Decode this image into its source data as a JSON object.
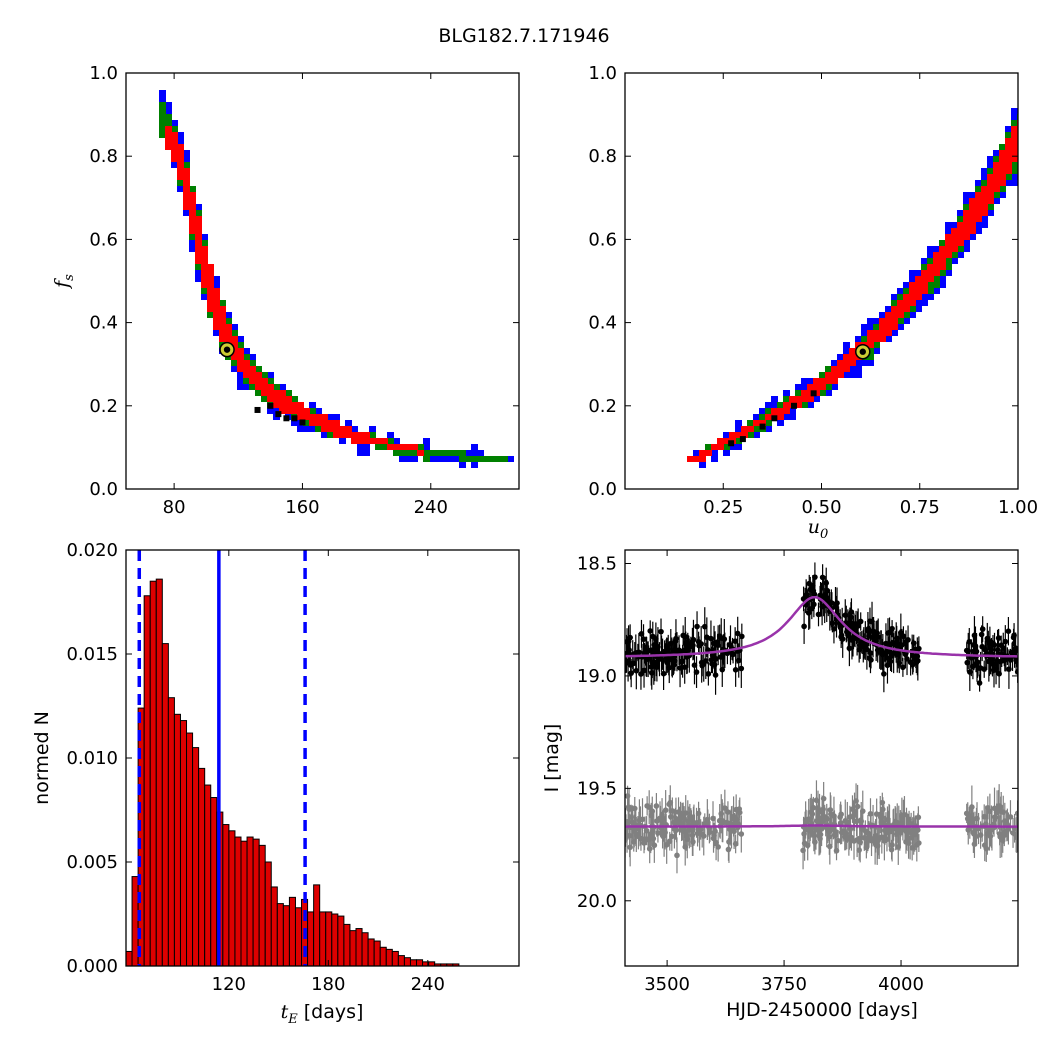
{
  "figure": {
    "title": "BLG182.7.171946"
  },
  "colors": {
    "sigma3": "#0000ff",
    "sigma2": "#008000",
    "sigma1": "#ff0000",
    "core": "#000000",
    "best_fit_marker": "#cccc33",
    "hist_bar": "#dd0000",
    "hist_line": "#0000ff",
    "data_primary": "#000000",
    "data_secondary": "#808080",
    "model": "#9933aa"
  },
  "chart_data": [
    {
      "type": "heatmap",
      "id": "tE_vs_fs",
      "xlabel": "",
      "ylabel": "f_s",
      "ylabel_parts": {
        "sym": "f",
        "sub": "s"
      },
      "xlim": [
        50,
        295
      ],
      "ylim": [
        0.0,
        1.0
      ],
      "xticks": [
        80,
        160,
        240
      ],
      "yticks": [
        0.0,
        0.2,
        0.4,
        0.6,
        0.8,
        1.0
      ],
      "xtick_labels": [
        "80",
        "160",
        "240"
      ],
      "ytick_labels": [
        "0.0",
        "0.2",
        "0.4",
        "0.6",
        "0.8",
        "1.0"
      ],
      "confidence_bands": [
        {
          "level": "3 sigma",
          "ridge": [
            [
              72,
              0.93
            ],
            [
              80,
              0.84
            ],
            [
              88,
              0.72
            ],
            [
              96,
              0.58
            ],
            [
              104,
              0.46
            ],
            [
              112,
              0.37
            ],
            [
              124,
              0.29
            ],
            [
              140,
              0.23
            ],
            [
              160,
              0.18
            ],
            [
              190,
              0.13
            ],
            [
              220,
              0.1
            ],
            [
              250,
              0.08
            ],
            [
              288,
              0.07
            ]
          ],
          "halfwidth_y": [
            0.035,
            0.04,
            0.045,
            0.05,
            0.05,
            0.045,
            0.04,
            0.035,
            0.03,
            0.02,
            0.015,
            0.012,
            0.01
          ]
        },
        {
          "level": "2 sigma",
          "ridge": [
            [
              72,
              0.9
            ],
            [
              80,
              0.83
            ],
            [
              88,
              0.72
            ],
            [
              96,
              0.58
            ],
            [
              104,
              0.46
            ],
            [
              112,
              0.37
            ],
            [
              124,
              0.29
            ],
            [
              140,
              0.23
            ],
            [
              160,
              0.18
            ],
            [
              190,
              0.13
            ],
            [
              220,
              0.1
            ],
            [
              250,
              0.08
            ],
            [
              284,
              0.07
            ]
          ],
          "halfwidth_y": [
            0.025,
            0.03,
            0.035,
            0.04,
            0.04,
            0.035,
            0.03,
            0.027,
            0.022,
            0.016,
            0.012,
            0.01,
            0.008
          ]
        },
        {
          "level": "1 sigma",
          "ridge": [
            [
              75,
              0.85
            ],
            [
              80,
              0.83
            ],
            [
              88,
              0.72
            ],
            [
              96,
              0.58
            ],
            [
              104,
              0.46
            ],
            [
              112,
              0.37
            ],
            [
              124,
              0.29
            ],
            [
              140,
              0.23
            ],
            [
              160,
              0.18
            ],
            [
              190,
              0.13
            ],
            [
              220,
              0.1
            ],
            [
              235,
              0.09
            ]
          ],
          "halfwidth_y": [
            0.02,
            0.022,
            0.025,
            0.028,
            0.028,
            0.025,
            0.022,
            0.02,
            0.016,
            0.012,
            0.009,
            0.008
          ]
        }
      ],
      "core_points": [
        [
          132,
          0.19
        ],
        [
          140,
          0.2
        ],
        [
          145,
          0.18
        ],
        [
          150,
          0.17
        ],
        [
          155,
          0.17
        ],
        [
          160,
          0.16
        ]
      ],
      "best_fit": {
        "x": 113,
        "y": 0.335
      }
    },
    {
      "type": "heatmap",
      "id": "u0_vs_fs",
      "xlabel": "u_0",
      "ylabel": "",
      "xlabel_parts": {
        "sym": "u",
        "sub": "0"
      },
      "xlim": [
        0.0,
        1.0
      ],
      "ylim": [
        0.0,
        1.0
      ],
      "xticks": [
        0.25,
        0.5,
        0.75,
        1.0
      ],
      "yticks": [
        0.0,
        0.2,
        0.4,
        0.6,
        0.8,
        1.0
      ],
      "xtick_labels": [
        "0.25",
        "0.50",
        "0.75",
        "1.00"
      ],
      "ytick_labels": [
        "0.0",
        "0.2",
        "0.4",
        "0.6",
        "0.8",
        "1.0"
      ],
      "confidence_bands": [
        {
          "level": "3 sigma",
          "ridge": [
            [
              0.17,
              0.07
            ],
            [
              0.25,
              0.11
            ],
            [
              0.35,
              0.16
            ],
            [
              0.45,
              0.22
            ],
            [
              0.55,
              0.29
            ],
            [
              0.62,
              0.35
            ],
            [
              0.7,
              0.43
            ],
            [
              0.78,
              0.52
            ],
            [
              0.85,
              0.61
            ],
            [
              0.92,
              0.71
            ],
            [
              0.97,
              0.79
            ],
            [
              1.0,
              0.85
            ]
          ],
          "halfwidth_y": [
            0.01,
            0.015,
            0.02,
            0.025,
            0.03,
            0.035,
            0.04,
            0.045,
            0.05,
            0.055,
            0.06,
            0.065
          ]
        },
        {
          "level": "2 sigma",
          "ridge": [
            [
              0.17,
              0.07
            ],
            [
              0.25,
              0.11
            ],
            [
              0.35,
              0.16
            ],
            [
              0.45,
              0.22
            ],
            [
              0.55,
              0.29
            ],
            [
              0.62,
              0.35
            ],
            [
              0.7,
              0.43
            ],
            [
              0.78,
              0.52
            ],
            [
              0.85,
              0.61
            ],
            [
              0.92,
              0.71
            ],
            [
              0.97,
              0.79
            ],
            [
              1.0,
              0.85
            ]
          ],
          "halfwidth_y": [
            0.008,
            0.011,
            0.015,
            0.018,
            0.022,
            0.026,
            0.03,
            0.033,
            0.037,
            0.04,
            0.045,
            0.05
          ]
        },
        {
          "level": "1 sigma",
          "ridge": [
            [
              0.17,
              0.07
            ],
            [
              0.25,
              0.11
            ],
            [
              0.35,
              0.16
            ],
            [
              0.45,
              0.22
            ],
            [
              0.55,
              0.29
            ],
            [
              0.62,
              0.35
            ],
            [
              0.7,
              0.43
            ],
            [
              0.78,
              0.52
            ],
            [
              0.85,
              0.61
            ],
            [
              0.92,
              0.71
            ],
            [
              0.97,
              0.79
            ],
            [
              1.0,
              0.85
            ]
          ],
          "halfwidth_y": [
            0.006,
            0.008,
            0.01,
            0.012,
            0.015,
            0.017,
            0.02,
            0.022,
            0.025,
            0.028,
            0.03,
            0.033
          ]
        }
      ],
      "core_points": [
        [
          0.27,
          0.11
        ],
        [
          0.3,
          0.12
        ],
        [
          0.35,
          0.15
        ],
        [
          0.38,
          0.17
        ],
        [
          0.43,
          0.2
        ],
        [
          0.48,
          0.23
        ]
      ],
      "best_fit": {
        "x": 0.605,
        "y": 0.33
      }
    },
    {
      "type": "bar",
      "id": "tE_histogram",
      "xlabel": "t_E [days]",
      "xlabel_parts": {
        "sym": "t",
        "sub": "E",
        "unit": " [days]"
      },
      "ylabel": "normed N",
      "xlim": [
        58,
        295
      ],
      "ylim": [
        0.0,
        0.02
      ],
      "xticks": [
        120,
        180,
        240
      ],
      "yticks": [
        0.0,
        0.005,
        0.01,
        0.015,
        0.02
      ],
      "xtick_labels": [
        "120",
        "180",
        "240"
      ],
      "ytick_labels": [
        "0.000",
        "0.005",
        "0.010",
        "0.015",
        "0.020"
      ],
      "bin_start": 58,
      "bin_width": 3.65,
      "values": [
        0.0007,
        0.0043,
        0.0124,
        0.0178,
        0.0185,
        0.0186,
        0.0155,
        0.0129,
        0.0121,
        0.0118,
        0.0112,
        0.0105,
        0.0095,
        0.0087,
        0.0081,
        0.0074,
        0.0068,
        0.0065,
        0.0062,
        0.006,
        0.0062,
        0.0061,
        0.0058,
        0.005,
        0.0038,
        0.003,
        0.0029,
        0.0033,
        0.0028,
        0.0032,
        0.0026,
        0.0039,
        0.0026,
        0.0026,
        0.0025,
        0.0024,
        0.002,
        0.0017,
        0.0018,
        0.0016,
        0.0013,
        0.0012,
        0.0009,
        0.0008,
        0.0007,
        0.0005,
        0.0004,
        0.0003,
        0.0003,
        0.0002,
        0.0002,
        0.0001,
        0.0001,
        0.0001,
        0.0001
      ],
      "vlines": [
        {
          "x": 66,
          "style": "dashed"
        },
        {
          "x": 114,
          "style": "solid"
        },
        {
          "x": 166,
          "style": "dashed"
        }
      ]
    },
    {
      "type": "scatter",
      "id": "light_curve",
      "xlabel": "HJD-2450000 [days]",
      "ylabel": "I [mag]",
      "xlim": [
        3410,
        4250
      ],
      "ylim": [
        20.29,
        18.44
      ],
      "y_inverted": true,
      "xticks": [
        3500,
        3750,
        4000
      ],
      "yticks": [
        18.5,
        19.0,
        19.5,
        20.0
      ],
      "xtick_labels": [
        "3500",
        "3750",
        "4000"
      ],
      "ytick_labels": [
        "18.5",
        "19.0",
        "19.5",
        "20.0"
      ],
      "season_gaps": [
        [
          3660,
          3790
        ],
        [
          4040,
          4140
        ]
      ],
      "series": [
        {
          "baseline": 18.9,
          "scatter": 0.09,
          "errorbar": 0.06,
          "color": "data_primary",
          "model": {
            "t0": 3815,
            "peak": 18.65,
            "baseline": 18.92,
            "width": 70
          }
        },
        {
          "baseline": 19.67,
          "scatter": 0.1,
          "errorbar": 0.065,
          "color": "data_secondary",
          "model": {
            "t0": 3815,
            "peak": 19.665,
            "baseline": 19.67,
            "width": 70
          }
        }
      ]
    }
  ]
}
